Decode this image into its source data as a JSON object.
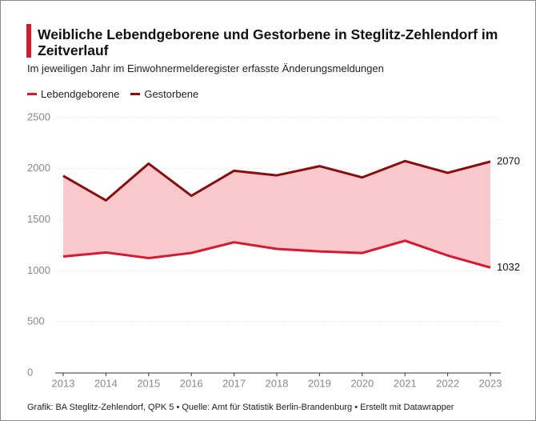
{
  "chart_data": {
    "type": "line",
    "title": "Weibliche Lebendgeborene und Gestorbene in Steglitz-Zehlendorf im Zeitverlauf",
    "subtitle": "Im jeweiligen Jahr im Einwohnermelderegister erfasste Änderungsmeldungen",
    "footer": "Grafik: BA Steglitz-Zehlendorf, QPK 5 • Quelle: Amt für Statistik Berlin-Brandenburg • Erstellt mit Datawrapper",
    "x": [
      2013,
      2014,
      2015,
      2016,
      2017,
      2018,
      2019,
      2020,
      2021,
      2022,
      2023
    ],
    "xlim": [
      2013,
      2023
    ],
    "xticks": [
      2013,
      2014,
      2015,
      2016,
      2017,
      2018,
      2019,
      2020,
      2021,
      2022,
      2023
    ],
    "ylim": [
      0,
      2500
    ],
    "yticks": [
      0,
      500,
      1000,
      1500,
      2000,
      2500
    ],
    "grid": true,
    "area_color": "#f9c8cc",
    "series": [
      {
        "name": "Lebendgeborene",
        "color": "#d7192f",
        "values": [
          1140,
          1180,
          1125,
          1175,
          1280,
          1215,
          1190,
          1175,
          1295,
          1150,
          1032
        ]
      },
      {
        "name": "Gestorbene",
        "color": "#8a0d0d",
        "values": [
          1930,
          1690,
          2050,
          1735,
          1980,
          1935,
          2025,
          1915,
          2075,
          1960,
          2070
        ]
      }
    ]
  }
}
